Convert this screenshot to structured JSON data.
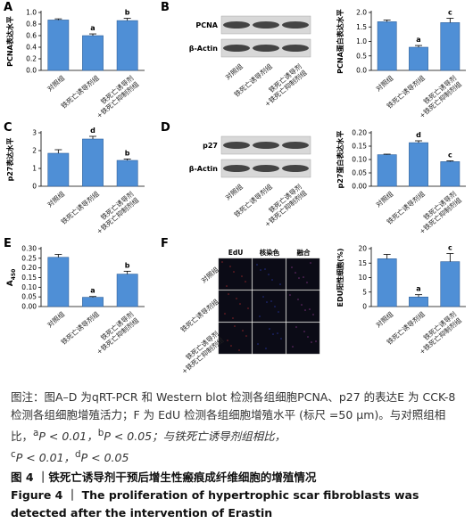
{
  "chart_data": [
    {
      "type": "bar",
      "panel": "A",
      "ylabel": "PCNA表达水平",
      "categories": [
        "对照组",
        "铁死亡诱导剂组",
        "铁死亡诱导剂\n+铁死亡抑制剂组"
      ],
      "values": [
        0.87,
        0.6,
        0.86
      ],
      "errors": [
        0.02,
        0.03,
        0.04
      ],
      "annotations": [
        null,
        "a",
        "b"
      ],
      "ylim": [
        0,
        1
      ],
      "yticks": [
        {
          "value": 0,
          "label": "0.0"
        },
        0.2,
        0.4,
        0.6,
        0.8,
        {
          "value": 1,
          "label": "1.0"
        }
      ],
      "color": "#4f8fd6"
    },
    {
      "type": "bar",
      "ylabel": "PCNA蛋白表达水平",
      "categories": [
        "对照组",
        "铁死亡诱导剂组",
        "铁死亡诱导剂\n+铁死亡抑制剂组"
      ],
      "values": [
        1.68,
        0.8,
        1.65
      ],
      "errors": [
        0.06,
        0.06,
        0.15
      ],
      "annotations": [
        null,
        "a",
        "c"
      ],
      "ylim": [
        0,
        2
      ],
      "yticks": [
        {
          "value": 0,
          "label": "0.0"
        },
        0.5,
        {
          "value": 1,
          "label": "1.0"
        },
        1.5,
        {
          "value": 2,
          "label": "2.0"
        }
      ],
      "color": "#4f8fd6"
    },
    {
      "type": "bar",
      "panel": "C",
      "ylabel": "p27表达水平",
      "categories": [
        "对照组",
        "铁死亡诱导剂组",
        "铁死亡诱导剂\n+铁死亡抑制剂组"
      ],
      "values": [
        1.85,
        2.65,
        1.45
      ],
      "errors": [
        0.2,
        0.15,
        0.08
      ],
      "annotations": [
        null,
        "d",
        "b"
      ],
      "ylim": [
        0,
        3
      ],
      "yticks": [
        0,
        1,
        2,
        3
      ],
      "color": "#4f8fd6"
    },
    {
      "type": "bar",
      "ylabel": "p27蛋白表达水平",
      "categories": [
        "对照组",
        "铁死亡诱导剂组",
        "铁死亡诱导剂\n+铁死亡抑制剂组"
      ],
      "values": [
        0.118,
        0.163,
        0.092
      ],
      "errors": [
        0.002,
        0.007,
        0.003
      ],
      "annotations": [
        null,
        "d",
        "c"
      ],
      "ylim": [
        0,
        0.2
      ],
      "yticks": [
        {
          "value": 0,
          "label": "0.00"
        },
        0.05,
        {
          "value": 0.1,
          "label": "0.10"
        },
        0.15,
        {
          "value": 0.2,
          "label": "0.20"
        }
      ],
      "color": "#4f8fd6"
    },
    {
      "type": "bar",
      "panel": "E",
      "ylabel": "A",
      "ylabel_sub": "450",
      "categories": [
        "对照组",
        "铁死亡诱导剂组",
        "铁死亡诱导剂\n+铁死亡抑制剂组"
      ],
      "values": [
        0.255,
        0.048,
        0.168
      ],
      "errors": [
        0.015,
        0.004,
        0.015
      ],
      "annotations": [
        null,
        "a",
        "b"
      ],
      "ylim": [
        0,
        0.3
      ],
      "yticks": [
        {
          "value": 0,
          "label": "0.00"
        },
        0.05,
        {
          "value": 0.1,
          "label": "0.10"
        },
        0.15,
        {
          "value": 0.2,
          "label": "0.20"
        },
        0.25,
        {
          "value": 0.3,
          "label": "0.30"
        }
      ],
      "color": "#4f8fd6"
    },
    {
      "type": "bar",
      "ylabel": "EDU阳性细胞(%)",
      "categories": [
        "对照组",
        "铁死亡诱导剂组",
        "铁死亡诱导剂\n+铁死亡抑制剂组"
      ],
      "values": [
        16.5,
        3.3,
        15.5
      ],
      "errors": [
        1.5,
        0.8,
        2.8
      ],
      "annotations": [
        null,
        "a",
        "c"
      ],
      "ylim": [
        0,
        20
      ],
      "yticks": [
        0,
        5,
        10,
        15,
        20
      ],
      "color": "#4f8fd6"
    }
  ],
  "blots": [
    {
      "panel": "B",
      "rows": [
        "PCNA",
        "β-Actin"
      ],
      "categories": [
        "对照组",
        "铁死亡诱导剂组",
        "铁死亡诱导剂\n+铁死亡抑制剂组"
      ]
    },
    {
      "panel": "D",
      "rows": [
        "p27",
        "β-Actin"
      ],
      "categories": [
        "对照组",
        "铁死亡诱导剂组",
        "铁死亡诱导剂\n+铁死亡抑制剂组"
      ]
    }
  ],
  "microscopy": {
    "panel": "F",
    "columns": [
      "EdU",
      "核染色",
      "融合"
    ],
    "rows": [
      "对照组",
      "铁死亡诱导剂组",
      "铁死亡诱导剂\n+铁死亡抑制剂组"
    ]
  },
  "caption": {
    "note": [
      "图注：图A–D 为qRT-PCR 和 Western blot 检测各组细胞PCNA、p27 的表达E 为 CCK-8 检测各组细胞增殖活力；F 为 EdU 检测各组细胞增殖水平 (标尺 =50 μm)。与对照组相比，",
      "a",
      "P < 0.01，",
      "b",
      "P < 0.05；与铁死亡诱导剂组相比，",
      "c",
      "P < 0.01，",
      "d",
      "P < 0.05"
    ],
    "title_cn": "图 4 ｜铁死亡诱导剂干预后增生性瘢痕成纤维细胞的增殖情况",
    "title_en": "Figure 4 ｜ The proliferation of hypertrophic scar fibroblasts was detected after the intervention of Erastin"
  }
}
